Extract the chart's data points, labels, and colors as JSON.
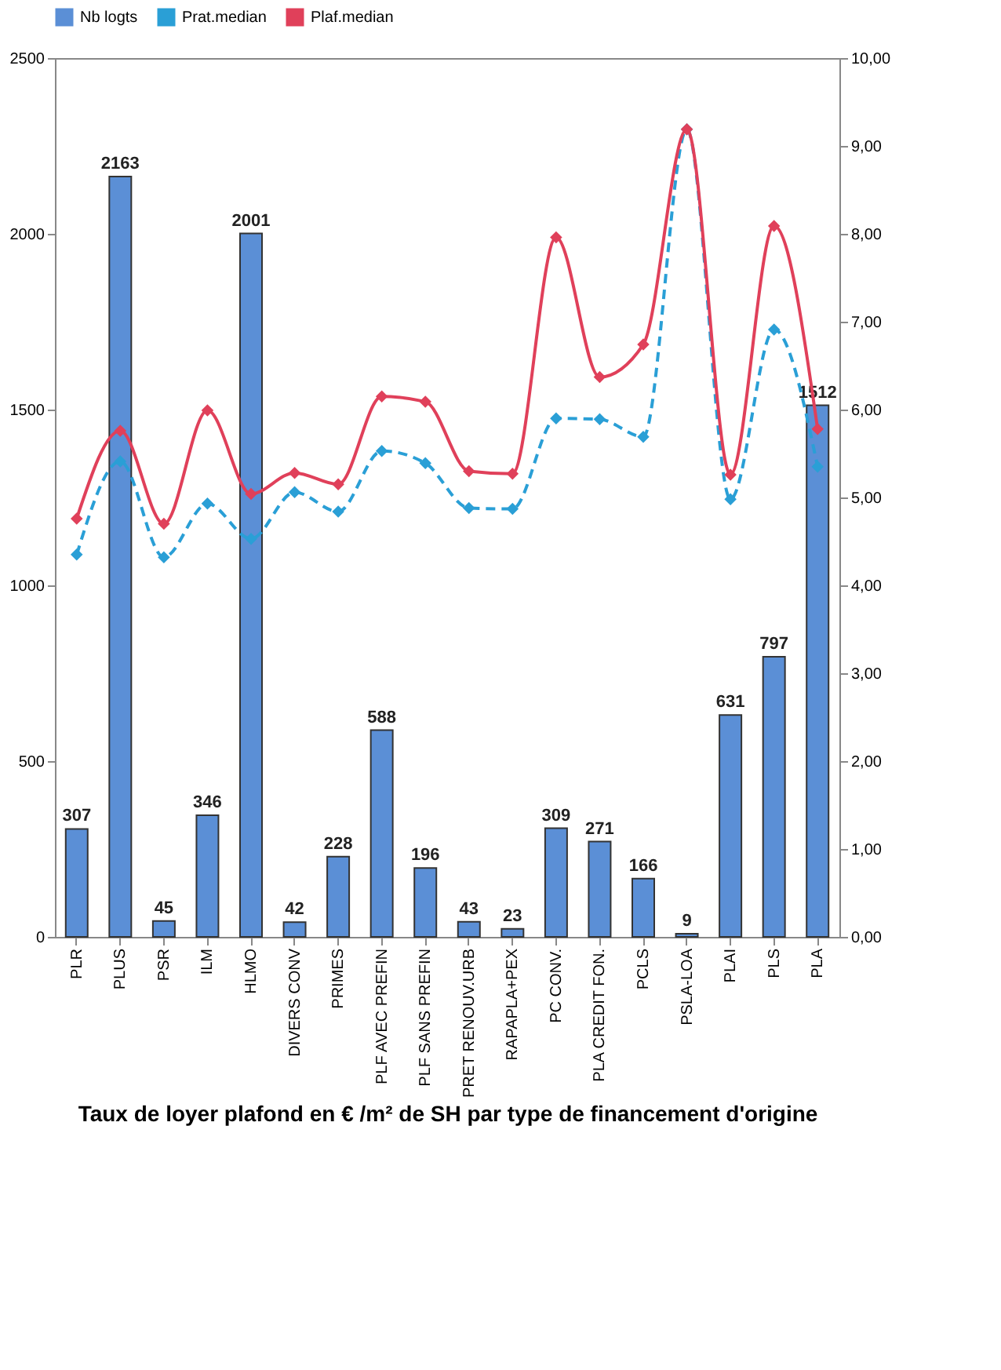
{
  "chart_data": {
    "type": "bar",
    "xlabel": "Taux de loyer plafond en € /m² de SH par type de financement d'origine",
    "categories": [
      "PLR",
      "PLUS",
      "PSR",
      "ILM",
      "HLMO",
      "DIVERS CONV",
      "PRIMES",
      "PLF AVEC PREFIN",
      "PLF SANS PREFIN",
      "PRET RENOUV.URB",
      "RAPAPLA+PEX",
      "PC CONV.",
      "PLA CREDIT FON.",
      "PCLS",
      "PSLA-LOA",
      "PLAI",
      "PLS",
      "PLA"
    ],
    "series": [
      {
        "name": "Nb logts",
        "color": "#5b8fd6",
        "values": [
          307,
          2163,
          45,
          346,
          2001,
          42,
          228,
          588,
          196,
          43,
          23,
          309,
          271,
          166,
          9,
          631,
          797,
          1512
        ],
        "value_labels": [
          "307",
          "2163",
          "45",
          "346",
          "2001",
          "42",
          "228",
          "588",
          "196",
          "43",
          "23",
          "309",
          "271",
          "166",
          "9",
          "631",
          "797",
          "1512"
        ]
      },
      {
        "name": "Prat.median",
        "type": "line",
        "axis": "y2",
        "color": "#2a9fd6",
        "line_style": "dashed",
        "marker": "diamond",
        "values": [
          4.35,
          5.41,
          4.32,
          4.93,
          4.53,
          5.06,
          4.84,
          5.53,
          5.39,
          4.88,
          4.87,
          5.9,
          5.89,
          5.69,
          9.19,
          4.98,
          6.91,
          5.35
        ]
      },
      {
        "name": "Plaf.median",
        "type": "line",
        "axis": "y2",
        "color": "#e0405a",
        "line_style": "solid",
        "marker": "diamond",
        "values": [
          4.76,
          5.76,
          4.7,
          5.99,
          5.04,
          5.28,
          5.15,
          6.15,
          6.09,
          5.3,
          5.27,
          7.96,
          6.37,
          6.74,
          9.19,
          5.26,
          8.09,
          5.78
        ]
      }
    ],
    "ylim": [
      0,
      2500
    ],
    "yticks": [
      0,
      500,
      1000,
      1500,
      2000,
      2500
    ],
    "y2lim": [
      0,
      10
    ],
    "y2ticks": [
      {
        "value": 0,
        "label": "0,00"
      },
      {
        "value": 1,
        "label": "1,00"
      },
      {
        "value": 2,
        "label": "2,00"
      },
      {
        "value": 3,
        "label": "3,00"
      },
      {
        "value": 4,
        "label": "4,00"
      },
      {
        "value": 5,
        "label": "5,00"
      },
      {
        "value": 6,
        "label": "6,00"
      },
      {
        "value": 7,
        "label": "7,00"
      },
      {
        "value": 8,
        "label": "8,00"
      },
      {
        "value": 9,
        "label": "9,00"
      },
      {
        "value": 10,
        "label": "10,00"
      }
    ],
    "legend": "top"
  }
}
